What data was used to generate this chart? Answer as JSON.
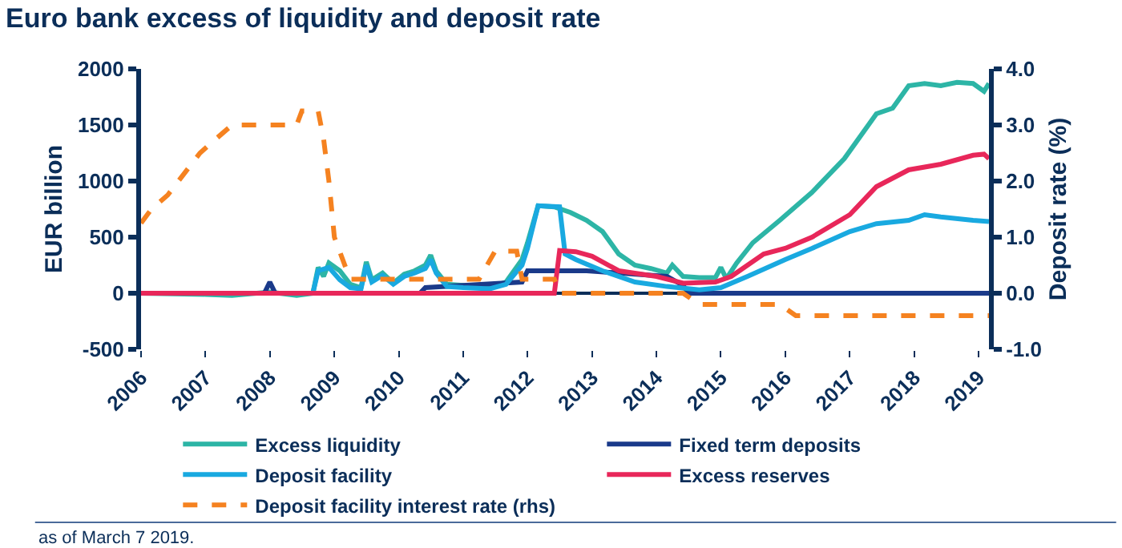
{
  "chart_data": {
    "type": "line",
    "title": "Euro bank excess of liquidity and deposit rate",
    "ylabel": "EUR billion",
    "y2label": "Deposit rate (%)",
    "xlim": [
      "2006-01",
      "2019-03"
    ],
    "xticks": [
      {
        "value": "2006-01",
        "label": "2006"
      },
      {
        "value": "2007-01",
        "label": "2007"
      },
      {
        "value": "2008-01",
        "label": "2008"
      },
      {
        "value": "2009-01",
        "label": "2009"
      },
      {
        "value": "2010-01",
        "label": "2010"
      },
      {
        "value": "2011-01",
        "label": "2011"
      },
      {
        "value": "2012-01",
        "label": "2012"
      },
      {
        "value": "2013-01",
        "label": "2013"
      },
      {
        "value": "2014-01",
        "label": "2014"
      },
      {
        "value": "2015-01",
        "label": "2015"
      },
      {
        "value": "2016-01",
        "label": "2016"
      },
      {
        "value": "2017-01",
        "label": "2017"
      },
      {
        "value": "2018-01",
        "label": "2018"
      },
      {
        "value": "2019-01",
        "label": "2019"
      }
    ],
    "ylim": [
      -500,
      2000
    ],
    "yticks": [
      -500,
      0,
      500,
      1000,
      1500,
      2000
    ],
    "y2lim": [
      -1,
      4
    ],
    "y2ticks": [
      {
        "value": -1,
        "label": "-1.0"
      },
      {
        "value": 0,
        "label": "0.0"
      },
      {
        "value": 1,
        "label": "1.0"
      },
      {
        "value": 2,
        "label": "2.0"
      },
      {
        "value": 3,
        "label": "3.0"
      },
      {
        "value": 4,
        "label": "4.0"
      }
    ],
    "grid": false,
    "legend": "bottom",
    "marker": "none",
    "line_style": "solid",
    "series": [
      {
        "name": "Excess liquidity",
        "color": "#2db5a6",
        "x": [
          "2006-01",
          "2007-01",
          "2007-06",
          "2008-01",
          "2008-06",
          "2008-09",
          "2008-10",
          "2008-11",
          "2008-12",
          "2009-02",
          "2009-04",
          "2009-06",
          "2009-07",
          "2009-08",
          "2009-10",
          "2009-12",
          "2010-02",
          "2010-04",
          "2010-06",
          "2010-07",
          "2010-08",
          "2010-10",
          "2011-01",
          "2011-06",
          "2011-09",
          "2011-12",
          "2012-01",
          "2012-03",
          "2012-06",
          "2012-09",
          "2012-12",
          "2013-03",
          "2013-06",
          "2013-09",
          "2013-12",
          "2014-03",
          "2014-04",
          "2014-06",
          "2014-09",
          "2014-12",
          "2015-01",
          "2015-02",
          "2015-04",
          "2015-07",
          "2015-12",
          "2016-06",
          "2016-12",
          "2017-06",
          "2017-09",
          "2017-12",
          "2018-03",
          "2018-06",
          "2018-09",
          "2018-12",
          "2019-02",
          "2019-03"
        ],
        "values": [
          0,
          -10,
          -20,
          10,
          -20,
          0,
          230,
          150,
          270,
          200,
          80,
          50,
          280,
          120,
          180,
          90,
          170,
          200,
          250,
          340,
          200,
          80,
          70,
          50,
          100,
          300,
          450,
          780,
          770,
          720,
          650,
          550,
          350,
          250,
          220,
          180,
          250,
          150,
          140,
          140,
          230,
          130,
          270,
          450,
          650,
          900,
          1200,
          1600,
          1650,
          1850,
          1870,
          1850,
          1880,
          1870,
          1800,
          1870
        ]
      },
      {
        "name": "Fixed term deposits",
        "color": "#1a3a8a",
        "x": [
          "2006-01",
          "2007-12",
          "2008-01",
          "2008-02",
          "2010-05",
          "2010-06",
          "2011-01",
          "2011-12",
          "2012-01",
          "2012-12",
          "2013-06",
          "2014-03",
          "2014-06",
          "2014-07",
          "2019-03"
        ],
        "values": [
          0,
          0,
          100,
          0,
          0,
          50,
          70,
          100,
          200,
          200,
          180,
          150,
          70,
          0,
          0
        ]
      },
      {
        "name": "Deposit facility",
        "color": "#19a9e0",
        "x": [
          "2006-01",
          "2008-09",
          "2008-10",
          "2008-12",
          "2009-02",
          "2009-04",
          "2009-06",
          "2009-07",
          "2009-08",
          "2009-10",
          "2009-12",
          "2010-02",
          "2010-04",
          "2010-06",
          "2010-07",
          "2010-08",
          "2010-10",
          "2011-01",
          "2011-06",
          "2011-09",
          "2011-12",
          "2012-01",
          "2012-03",
          "2012-07",
          "2012-08",
          "2012-10",
          "2013-03",
          "2013-09",
          "2014-03",
          "2014-09",
          "2015-01",
          "2015-06",
          "2016-01",
          "2016-06",
          "2017-01",
          "2017-06",
          "2017-12",
          "2018-03",
          "2018-06",
          "2018-12",
          "2019-03"
        ],
        "values": [
          0,
          0,
          200,
          230,
          120,
          50,
          40,
          250,
          100,
          160,
          80,
          150,
          180,
          220,
          300,
          180,
          60,
          50,
          40,
          80,
          250,
          400,
          780,
          770,
          350,
          300,
          200,
          100,
          60,
          30,
          50,
          150,
          300,
          400,
          550,
          620,
          650,
          700,
          680,
          650,
          640
        ]
      },
      {
        "name": "Excess reserves",
        "color": "#e8275a",
        "x": [
          "2006-01",
          "2012-06",
          "2012-07",
          "2012-10",
          "2013-01",
          "2013-06",
          "2014-01",
          "2014-06",
          "2014-12",
          "2015-03",
          "2015-09",
          "2016-01",
          "2016-06",
          "2017-01",
          "2017-06",
          "2017-12",
          "2018-06",
          "2018-12",
          "2019-02",
          "2019-03"
        ],
        "values": [
          0,
          0,
          380,
          370,
          330,
          200,
          150,
          90,
          100,
          150,
          350,
          400,
          500,
          700,
          950,
          1100,
          1150,
          1230,
          1240,
          1200
        ]
      },
      {
        "name": "Deposit facility interest rate (rhs)",
        "color": "#f58220",
        "axis": "y2",
        "line_style": "dashed",
        "x": [
          "2006-01",
          "2006-03",
          "2006-06",
          "2006-08",
          "2006-10",
          "2006-12",
          "2007-03",
          "2007-06",
          "2008-06",
          "2008-07",
          "2008-10",
          "2008-11",
          "2008-12",
          "2009-01",
          "2009-03",
          "2009-04",
          "2011-04",
          "2011-07",
          "2011-11",
          "2011-12",
          "2012-06",
          "2012-07",
          "2014-06",
          "2014-09",
          "2015-12",
          "2016-03",
          "2019-03"
        ],
        "values": [
          1.25,
          1.5,
          1.75,
          2.0,
          2.25,
          2.5,
          2.75,
          3.0,
          3.0,
          3.25,
          3.25,
          2.75,
          2.0,
          1.0,
          0.5,
          0.25,
          0.25,
          0.75,
          0.75,
          0.25,
          0.25,
          0,
          0,
          -0.2,
          -0.2,
          -0.4,
          -0.4
        ]
      }
    ],
    "annotations": [
      "as of March 7 2019."
    ]
  }
}
